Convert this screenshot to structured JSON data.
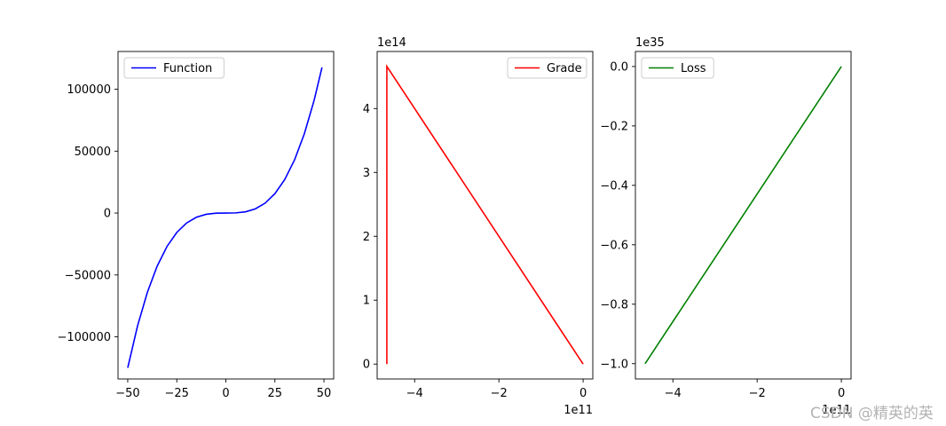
{
  "watermark": "CSDN @精英的英",
  "chart_data": [
    {
      "type": "line",
      "title": "",
      "xlabel": "",
      "ylabel": "",
      "xlim": [
        -54.95,
        54.95
      ],
      "ylim": [
        -134000,
        130500
      ],
      "x_ticks": [
        -50,
        -25,
        0,
        25,
        50
      ],
      "x_tick_labels": [
        "−50",
        "−25",
        "0",
        "25",
        "50"
      ],
      "y_ticks": [
        -100000,
        -50000,
        0,
        50000,
        100000
      ],
      "y_tick_labels": [
        "−100000",
        "−50000",
        "0",
        "50000",
        "100000"
      ],
      "x_offset": "",
      "y_offset": "",
      "legend": "top-left",
      "grid": false,
      "series": [
        {
          "name": "Function",
          "color": "#0000ff",
          "x": [
            -50,
            -45,
            -40,
            -35,
            -30,
            -25,
            -20,
            -15,
            -10,
            -5,
            0,
            5,
            10,
            15,
            20,
            25,
            30,
            35,
            40,
            45,
            49
          ],
          "y": [
            -125000,
            -91125,
            -64000,
            -42875,
            -27000,
            -15625,
            -8000,
            -3375,
            -1000,
            -125,
            0,
            125,
            1000,
            3375,
            8000,
            15625,
            27000,
            42875,
            64000,
            91125,
            117649
          ]
        }
      ]
    },
    {
      "type": "line",
      "title": "",
      "xlabel": "",
      "ylabel": "",
      "xlim": [
        -4.89,
        0.23
      ],
      "ylim": [
        -0.233,
        4.893
      ],
      "x_ticks": [
        -4,
        -2,
        0
      ],
      "x_tick_labels": [
        "−4",
        "−2",
        "0"
      ],
      "y_ticks": [
        0,
        1,
        2,
        3,
        4
      ],
      "y_tick_labels": [
        "0",
        "1",
        "2",
        "3",
        "4"
      ],
      "x_offset": "1e11",
      "y_offset": "1e14",
      "legend": "top-right",
      "grid": false,
      "series": [
        {
          "name": "Grade",
          "color": "#ff0000",
          "x": [
            -4.66,
            -4.66,
            0
          ],
          "y": [
            0,
            4.66,
            0
          ]
        }
      ]
    },
    {
      "type": "line",
      "title": "",
      "xlabel": "",
      "ylabel": "",
      "xlim": [
        -4.89,
        0.23
      ],
      "ylim": [
        -1.0515,
        0.0505
      ],
      "x_ticks": [
        -4,
        -2,
        0
      ],
      "x_tick_labels": [
        "−4",
        "−2",
        "0"
      ],
      "y_ticks": [
        0,
        -0.2,
        -0.4,
        -0.6,
        -0.8,
        -1.0
      ],
      "y_tick_labels": [
        "0.0",
        "−0.2",
        "−0.4",
        "−0.6",
        "−0.8",
        "−1.0"
      ],
      "x_offset": "1e11",
      "y_offset": "1e35",
      "legend": "top-left",
      "grid": false,
      "series": [
        {
          "name": "Loss",
          "color": "#008000",
          "x": [
            -4.66,
            0
          ],
          "y": [
            -1.0,
            0
          ]
        }
      ]
    }
  ]
}
